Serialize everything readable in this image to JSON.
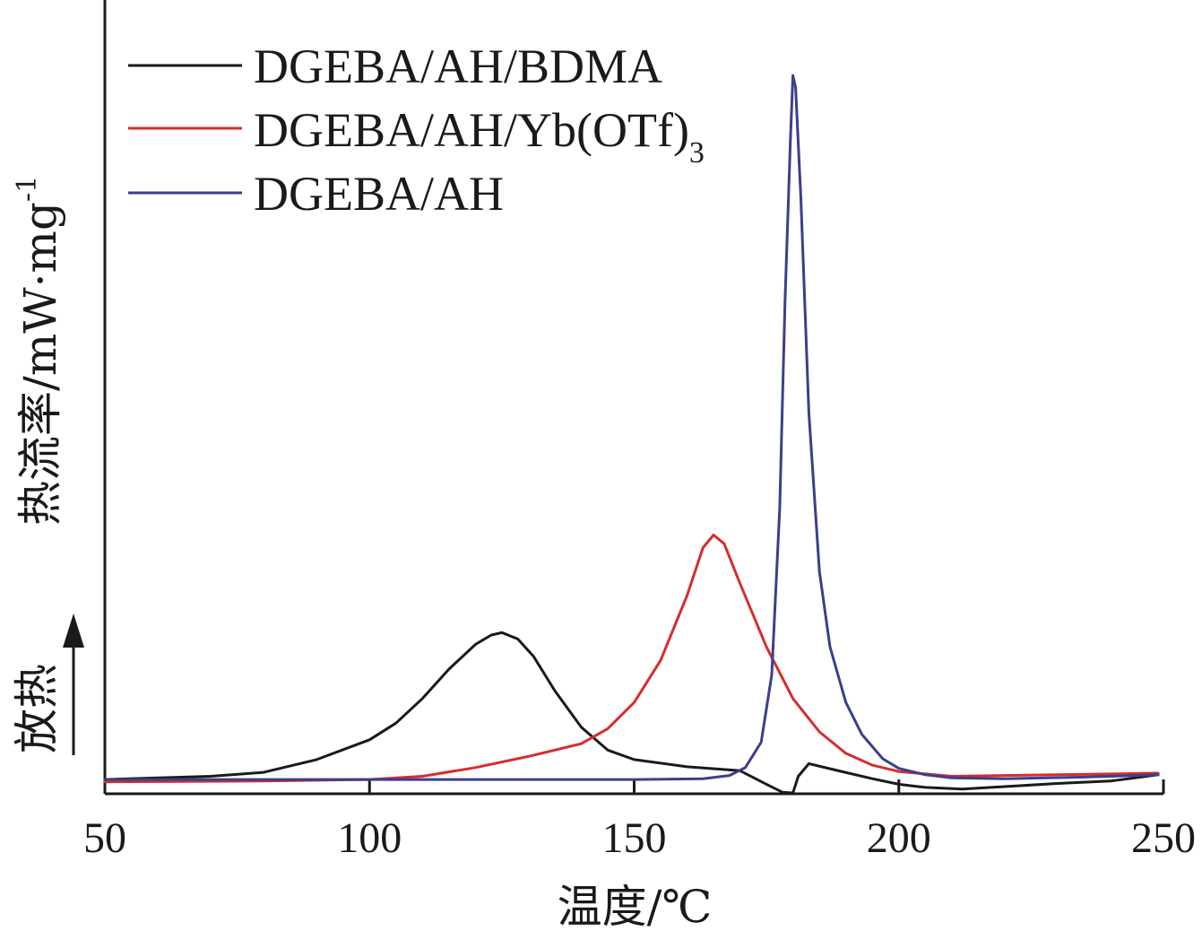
{
  "chart_data": {
    "type": "line",
    "xlabel": "温度/℃",
    "ylabel": "热流率/mW·mg",
    "ylabel_superscript": "-1",
    "exo_label": "放热",
    "xlim": [
      50,
      250
    ],
    "ylim": [
      0,
      100
    ],
    "xticks": [
      50,
      100,
      150,
      200,
      250
    ],
    "grid": false,
    "legend_position": "top-left",
    "series": [
      {
        "name": "DGEBA/AH/BDMA",
        "color": "#1a1a1a",
        "points": [
          [
            50,
            1.8
          ],
          [
            70,
            2.2
          ],
          [
            80,
            2.7
          ],
          [
            90,
            4.3
          ],
          [
            100,
            6.8
          ],
          [
            105,
            8.9
          ],
          [
            110,
            12.0
          ],
          [
            115,
            15.7
          ],
          [
            120,
            18.8
          ],
          [
            123,
            20.0
          ],
          [
            125,
            20.3
          ],
          [
            128,
            19.5
          ],
          [
            131,
            17.3
          ],
          [
            135,
            13.0
          ],
          [
            140,
            8.4
          ],
          [
            145,
            5.5
          ],
          [
            150,
            4.3
          ],
          [
            160,
            3.4
          ],
          [
            170,
            2.9
          ],
          [
            175,
            1.2
          ],
          [
            178,
            0.2
          ],
          [
            180,
            0.1
          ],
          [
            181,
            2.2
          ],
          [
            183,
            3.8
          ],
          [
            188,
            3.0
          ],
          [
            195,
            1.9
          ],
          [
            200,
            1.2
          ],
          [
            205,
            0.8
          ],
          [
            212,
            0.6
          ],
          [
            220,
            0.9
          ],
          [
            230,
            1.3
          ],
          [
            240,
            1.6
          ],
          [
            249,
            2.4
          ]
        ]
      },
      {
        "name": "DGEBA/AH/Yb(OTf)",
        "name_subscript": "3",
        "color": "#d62d2d",
        "points": [
          [
            50,
            1.5
          ],
          [
            80,
            1.6
          ],
          [
            100,
            1.8
          ],
          [
            110,
            2.2
          ],
          [
            120,
            3.3
          ],
          [
            130,
            4.7
          ],
          [
            140,
            6.3
          ],
          [
            145,
            8.2
          ],
          [
            150,
            11.5
          ],
          [
            155,
            16.8
          ],
          [
            160,
            25.0
          ],
          [
            163,
            31.0
          ],
          [
            165,
            32.6
          ],
          [
            167,
            31.5
          ],
          [
            170,
            26.5
          ],
          [
            175,
            18.5
          ],
          [
            180,
            12.0
          ],
          [
            185,
            7.8
          ],
          [
            190,
            5.1
          ],
          [
            195,
            3.6
          ],
          [
            200,
            2.8
          ],
          [
            210,
            2.2
          ],
          [
            220,
            2.3
          ],
          [
            230,
            2.4
          ],
          [
            240,
            2.5
          ],
          [
            249,
            2.6
          ]
        ]
      },
      {
        "name": "DGEBA/AH",
        "color": "#3b3f8a",
        "points": [
          [
            50,
            1.8
          ],
          [
            100,
            1.8
          ],
          [
            150,
            1.8
          ],
          [
            163,
            1.9
          ],
          [
            168,
            2.3
          ],
          [
            171,
            3.3
          ],
          [
            174,
            6.5
          ],
          [
            176,
            15.0
          ],
          [
            177.5,
            36.0
          ],
          [
            178.5,
            62.0
          ],
          [
            179.5,
            82.0
          ],
          [
            180,
            90.5
          ],
          [
            180.5,
            89.0
          ],
          [
            181.5,
            75.0
          ],
          [
            183,
            48.0
          ],
          [
            185,
            28.0
          ],
          [
            187,
            18.5
          ],
          [
            190,
            11.5
          ],
          [
            193,
            7.5
          ],
          [
            197,
            4.4
          ],
          [
            200,
            3.2
          ],
          [
            205,
            2.4
          ],
          [
            210,
            2.0
          ],
          [
            220,
            1.9
          ],
          [
            235,
            2.1
          ],
          [
            249,
            2.4
          ]
        ]
      }
    ]
  }
}
